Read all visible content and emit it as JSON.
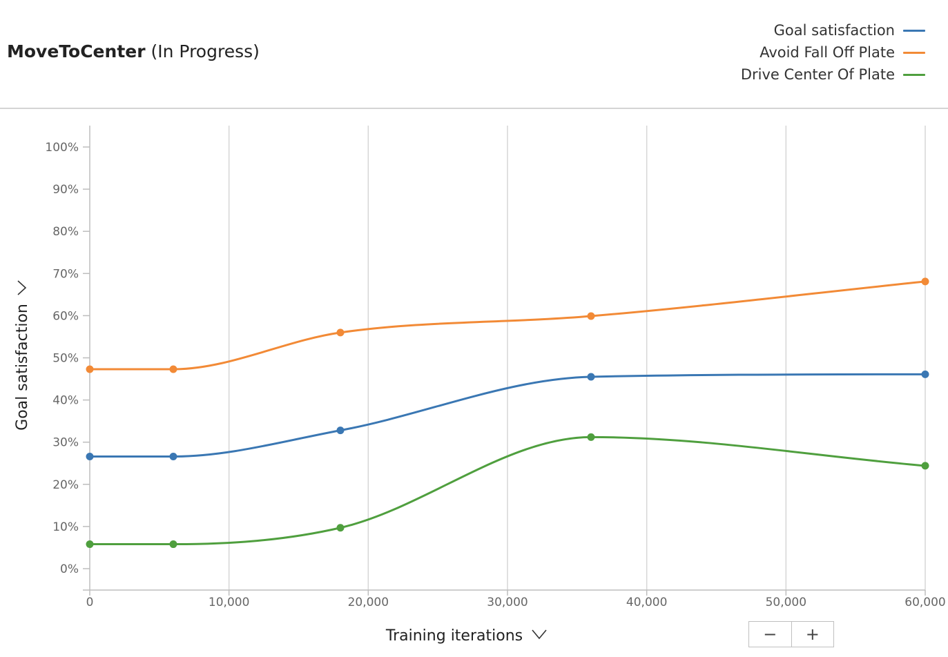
{
  "header": {
    "title_name": "MoveToCenter",
    "title_status": "(In Progress)"
  },
  "zoom": {
    "minus": "−",
    "plus": "+"
  },
  "chart_data": {
    "type": "line",
    "xlabel": "Training iterations",
    "ylabel": "Goal satisfaction",
    "xlim": [
      0,
      60000
    ],
    "ylim": [
      -5,
      105
    ],
    "xticks": [
      0,
      10000,
      20000,
      30000,
      40000,
      50000,
      60000
    ],
    "xtick_labels": [
      "0",
      "10,000",
      "20,000",
      "30,000",
      "40,000",
      "50,000",
      "60,000"
    ],
    "yticks": [
      0,
      10,
      20,
      30,
      40,
      50,
      60,
      70,
      80,
      90,
      100
    ],
    "ytick_labels": [
      "0%",
      "10%",
      "20%",
      "30%",
      "40%",
      "50%",
      "60%",
      "70%",
      "80%",
      "90%",
      "100%"
    ],
    "grid": "vertical",
    "legend_position": "top-right",
    "series": [
      {
        "name": "Goal satisfaction",
        "color": "#3a77b3",
        "x": [
          0,
          6000,
          18000,
          36000,
          60000
        ],
        "y": [
          26.6,
          26.6,
          32.8,
          45.5,
          46.1
        ]
      },
      {
        "name": "Avoid Fall Off Plate",
        "color": "#f28a36",
        "x": [
          0,
          6000,
          18000,
          36000,
          60000
        ],
        "y": [
          47.3,
          47.3,
          56.0,
          59.9,
          68.1
        ]
      },
      {
        "name": "Drive Center Of Plate",
        "color": "#4f9f3e",
        "x": [
          0,
          6000,
          18000,
          36000,
          60000
        ],
        "y": [
          5.8,
          5.8,
          9.7,
          31.2,
          24.4
        ]
      }
    ]
  }
}
